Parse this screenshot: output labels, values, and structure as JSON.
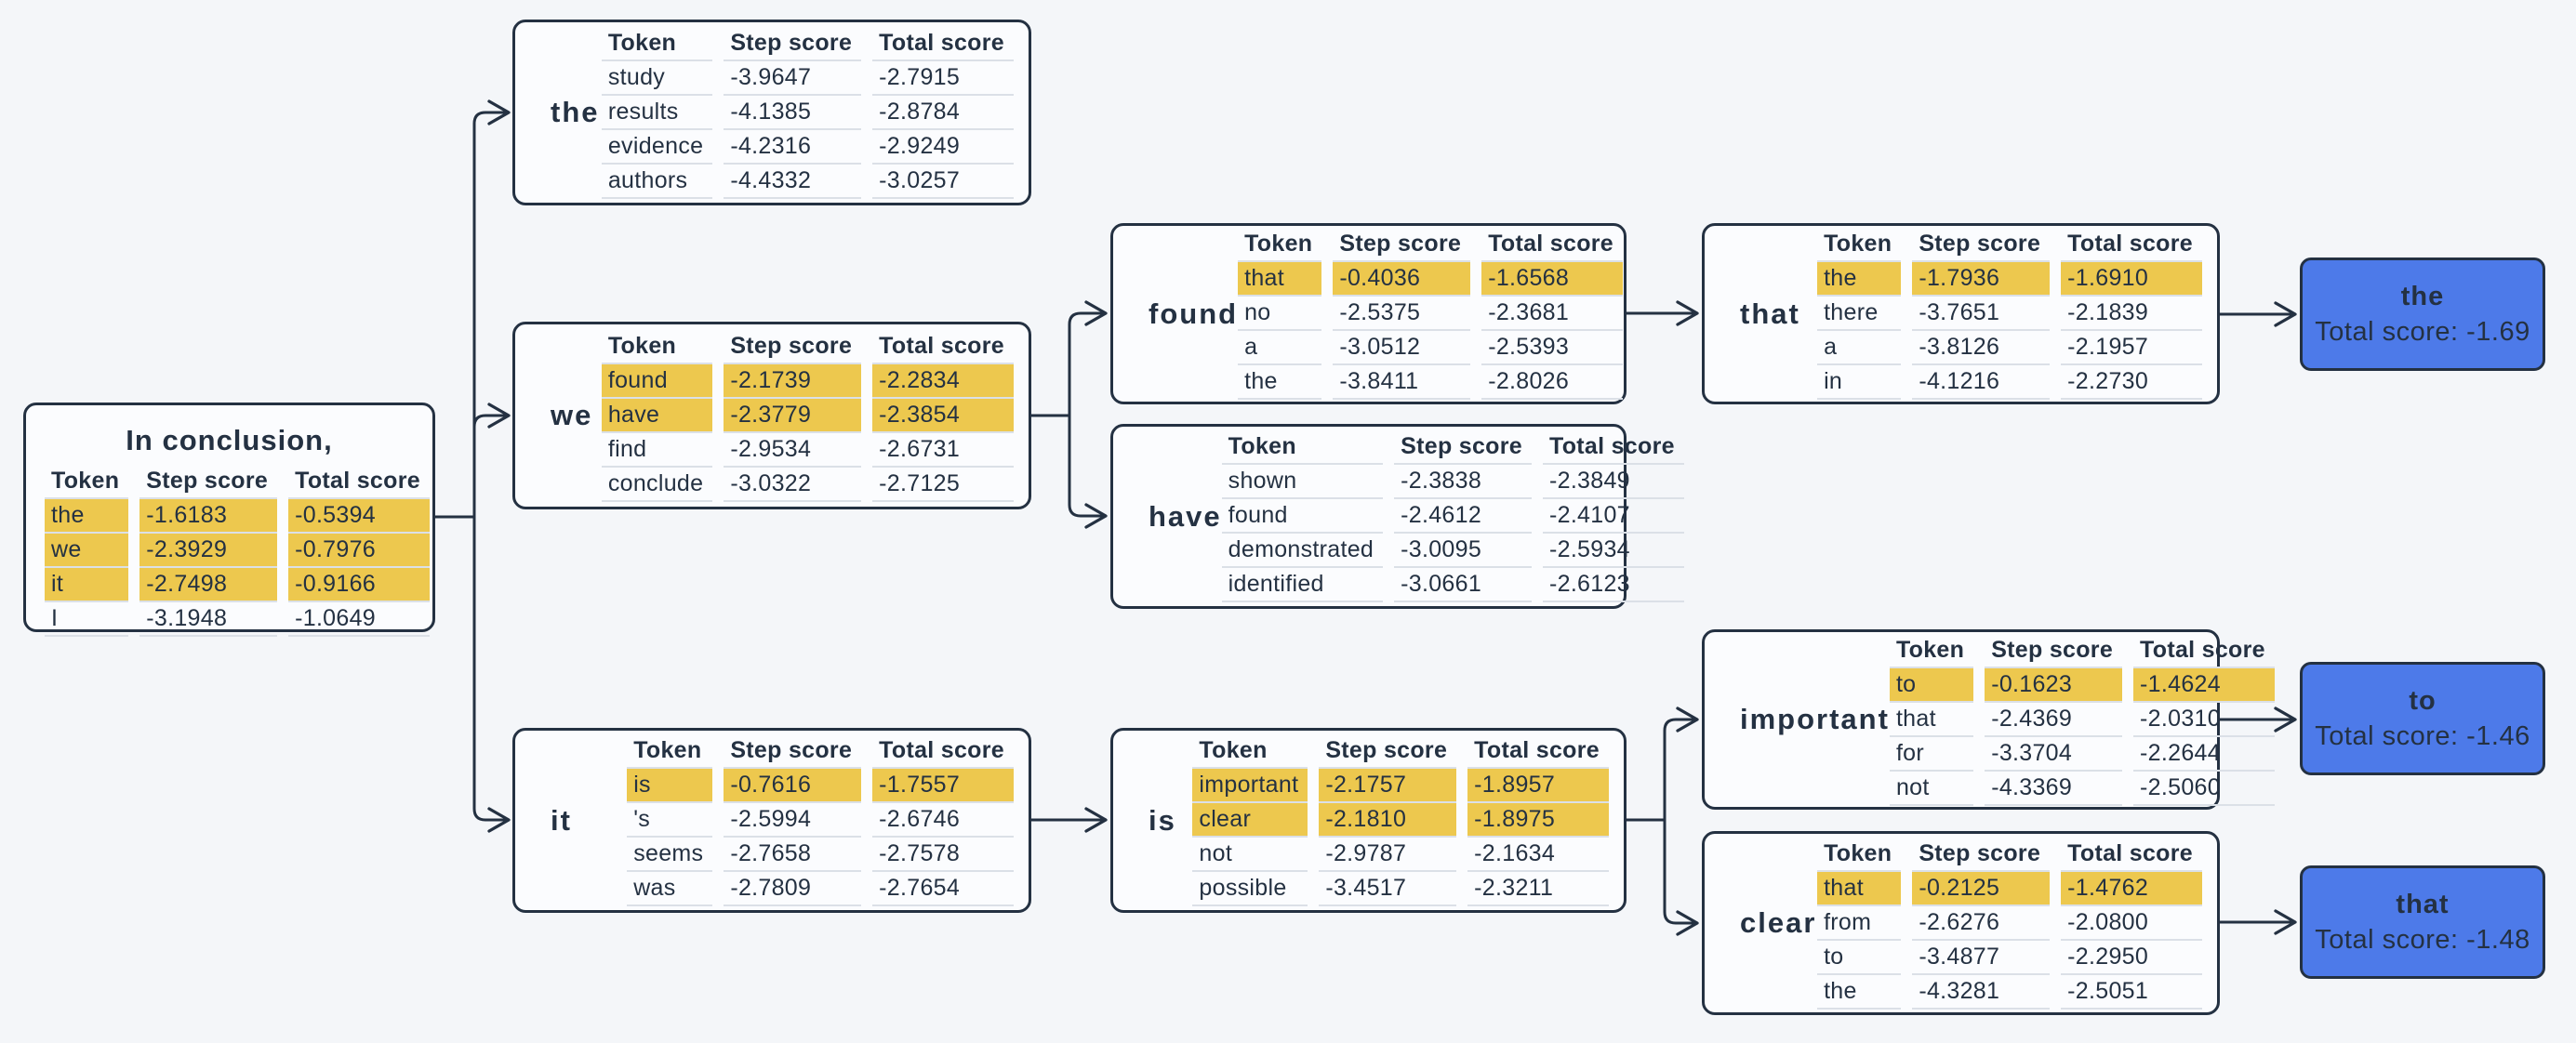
{
  "colors": {
    "background": "#f4f6f9",
    "node_background": "#fbfcfe",
    "node_border": "#243142",
    "highlight_yellow": "#edc84e",
    "terminal_blue": "#4d7ae9",
    "text": "#243142",
    "divider": "#dbe0e7"
  },
  "table_headers": [
    "Token",
    "Step score",
    "Total score"
  ],
  "root": {
    "title": "In conclusion,",
    "rows": [
      {
        "token": "the",
        "step": "-1.6183",
        "total": "-0.5394",
        "highlight": true
      },
      {
        "token": "we",
        "step": "-2.3929",
        "total": "-0.7976",
        "highlight": true
      },
      {
        "token": "it",
        "step": "-2.7498",
        "total": "-0.9166",
        "highlight": true
      },
      {
        "token": "I",
        "step": "-3.1948",
        "total": "-1.0649",
        "highlight": false
      }
    ]
  },
  "nodes": [
    {
      "label": "the",
      "rows": [
        {
          "token": "study",
          "step": "-3.9647",
          "total": "-2.7915",
          "highlight": false
        },
        {
          "token": "results",
          "step": "-4.1385",
          "total": "-2.8784",
          "highlight": false
        },
        {
          "token": "evidence",
          "step": "-4.2316",
          "total": "-2.9249",
          "highlight": false
        },
        {
          "token": "authors",
          "step": "-4.4332",
          "total": "-3.0257",
          "highlight": false
        }
      ]
    },
    {
      "label": "we",
      "rows": [
        {
          "token": "found",
          "step": "-2.1739",
          "total": "-2.2834",
          "highlight": true
        },
        {
          "token": "have",
          "step": "-2.3779",
          "total": "-2.3854",
          "highlight": true
        },
        {
          "token": "find",
          "step": "-2.9534",
          "total": "-2.6731",
          "highlight": false
        },
        {
          "token": "conclude",
          "step": "-3.0322",
          "total": "-2.7125",
          "highlight": false
        }
      ]
    },
    {
      "label": "it",
      "rows": [
        {
          "token": "is",
          "step": "-0.7616",
          "total": "-1.7557",
          "highlight": true
        },
        {
          "token": "'s",
          "step": "-2.5994",
          "total": "-2.6746",
          "highlight": false
        },
        {
          "token": "seems",
          "step": "-2.7658",
          "total": "-2.7578",
          "highlight": false
        },
        {
          "token": "was",
          "step": "-2.7809",
          "total": "-2.7654",
          "highlight": false
        }
      ]
    },
    {
      "label": "found",
      "rows": [
        {
          "token": "that",
          "step": "-0.4036",
          "total": "-1.6568",
          "highlight": true
        },
        {
          "token": "no",
          "step": "-2.5375",
          "total": "-2.3681",
          "highlight": false
        },
        {
          "token": "a",
          "step": "-3.0512",
          "total": "-2.5393",
          "highlight": false
        },
        {
          "token": "the",
          "step": "-3.8411",
          "total": "-2.8026",
          "highlight": false
        }
      ]
    },
    {
      "label": "have",
      "rows": [
        {
          "token": "shown",
          "step": "-2.3838",
          "total": "-2.3849",
          "highlight": false
        },
        {
          "token": "found",
          "step": "-2.4612",
          "total": "-2.4107",
          "highlight": false
        },
        {
          "token": "demonstrated",
          "step": "-3.0095",
          "total": "-2.5934",
          "highlight": false
        },
        {
          "token": "identified",
          "step": "-3.0661",
          "total": "-2.6123",
          "highlight": false
        }
      ]
    },
    {
      "label": "that",
      "rows": [
        {
          "token": "the",
          "step": "-1.7936",
          "total": "-1.6910",
          "highlight": true
        },
        {
          "token": "there",
          "step": "-3.7651",
          "total": "-2.1839",
          "highlight": false
        },
        {
          "token": "a",
          "step": "-3.8126",
          "total": "-2.1957",
          "highlight": false
        },
        {
          "token": "in",
          "step": "-4.1216",
          "total": "-2.2730",
          "highlight": false
        }
      ]
    },
    {
      "label": "is",
      "rows": [
        {
          "token": "important",
          "step": "-2.1757",
          "total": "-1.8957",
          "highlight": true
        },
        {
          "token": "clear",
          "step": "-2.1810",
          "total": "-1.8975",
          "highlight": true
        },
        {
          "token": "not",
          "step": "-2.9787",
          "total": "-2.1634",
          "highlight": false
        },
        {
          "token": "possible",
          "step": "-3.4517",
          "total": "-2.3211",
          "highlight": false
        }
      ]
    },
    {
      "label": "important",
      "rows": [
        {
          "token": "to",
          "step": "-0.1623",
          "total": "-1.4624",
          "highlight": true
        },
        {
          "token": "that",
          "step": "-2.4369",
          "total": "-2.0310",
          "highlight": false
        },
        {
          "token": "for",
          "step": "-3.3704",
          "total": "-2.2644",
          "highlight": false
        },
        {
          "token": "not",
          "step": "-4.3369",
          "total": "-2.5060",
          "highlight": false
        }
      ]
    },
    {
      "label": "clear",
      "rows": [
        {
          "token": "that",
          "step": "-0.2125",
          "total": "-1.4762",
          "highlight": true
        },
        {
          "token": "from",
          "step": "-2.6276",
          "total": "-2.0800",
          "highlight": false
        },
        {
          "token": "to",
          "step": "-3.4877",
          "total": "-2.2950",
          "highlight": false
        },
        {
          "token": "the",
          "step": "-4.3281",
          "total": "-2.5051",
          "highlight": false
        }
      ]
    }
  ],
  "terminals": [
    {
      "label": "the",
      "score_text": "Total score: -1.69"
    },
    {
      "label": "to",
      "score_text": "Total score: -1.46"
    },
    {
      "label": "that",
      "score_text": "Total score: -1.48"
    }
  ],
  "edges": [
    {
      "from": "In conclusion,",
      "to": "the"
    },
    {
      "from": "In conclusion,",
      "to": "we"
    },
    {
      "from": "In conclusion,",
      "to": "it"
    },
    {
      "from": "we",
      "to": "found"
    },
    {
      "from": "we",
      "to": "have"
    },
    {
      "from": "found",
      "to": "that"
    },
    {
      "from": "that",
      "to": "the (final)"
    },
    {
      "from": "it",
      "to": "is"
    },
    {
      "from": "is",
      "to": "important"
    },
    {
      "from": "is",
      "to": "clear"
    },
    {
      "from": "important",
      "to": "to (final)"
    },
    {
      "from": "clear",
      "to": "that (final)"
    }
  ]
}
